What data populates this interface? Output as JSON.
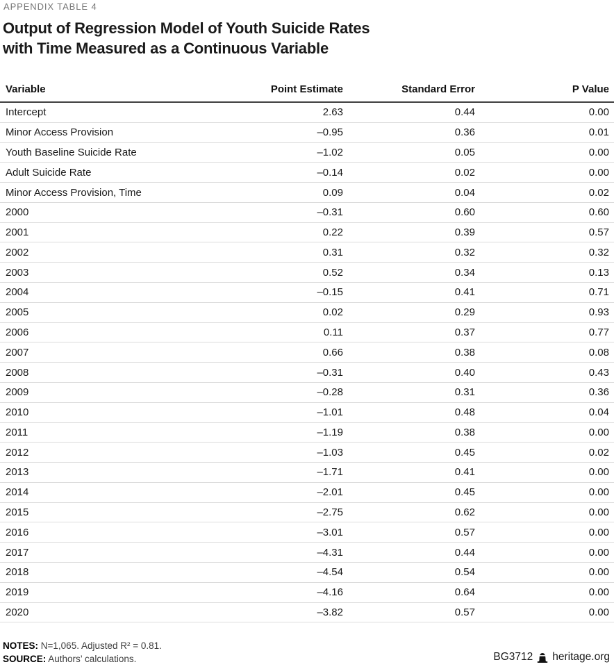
{
  "page": {
    "kicker": "APPENDIX TABLE 4",
    "title_line1": "Output of Regression Model of Youth Suicide Rates",
    "title_line2": "with Time Measured as a Continuous Variable"
  },
  "chart_data": {
    "type": "table",
    "title": "Output of Regression Model of Youth Suicide Rates with Time Measured as a Continuous Variable",
    "columns": [
      "Variable",
      "Point Estimate",
      "Standard Error",
      "P Value"
    ],
    "rows": [
      [
        "Intercept",
        "2.63",
        "0.44",
        "0.00"
      ],
      [
        "Minor Access Provision",
        "–0.95",
        "0.36",
        "0.01"
      ],
      [
        "Youth Baseline Suicide Rate",
        "–1.02",
        "0.05",
        "0.00"
      ],
      [
        "Adult Suicide Rate",
        "–0.14",
        "0.02",
        "0.00"
      ],
      [
        "Minor Access Provision, Time",
        "0.09",
        "0.04",
        "0.02"
      ],
      [
        "2000",
        "–0.31",
        "0.60",
        "0.60"
      ],
      [
        "2001",
        "0.22",
        "0.39",
        "0.57"
      ],
      [
        "2002",
        "0.31",
        "0.32",
        "0.32"
      ],
      [
        "2003",
        "0.52",
        "0.34",
        "0.13"
      ],
      [
        "2004",
        "–0.15",
        "0.41",
        "0.71"
      ],
      [
        "2005",
        "0.02",
        "0.29",
        "0.93"
      ],
      [
        "2006",
        "0.11",
        "0.37",
        "0.77"
      ],
      [
        "2007",
        "0.66",
        "0.38",
        "0.08"
      ],
      [
        "2008",
        "–0.31",
        "0.40",
        "0.43"
      ],
      [
        "2009",
        "–0.28",
        "0.31",
        "0.36"
      ],
      [
        "2010",
        "–1.01",
        "0.48",
        "0.04"
      ],
      [
        "2011",
        "–1.19",
        "0.38",
        "0.00"
      ],
      [
        "2012",
        "–1.03",
        "0.45",
        "0.02"
      ],
      [
        "2013",
        "–1.71",
        "0.41",
        "0.00"
      ],
      [
        "2014",
        "–2.01",
        "0.45",
        "0.00"
      ],
      [
        "2015",
        "–2.75",
        "0.62",
        "0.00"
      ],
      [
        "2016",
        "–3.01",
        "0.57",
        "0.00"
      ],
      [
        "2017",
        "–4.31",
        "0.44",
        "0.00"
      ],
      [
        "2018",
        "–4.54",
        "0.54",
        "0.00"
      ],
      [
        "2019",
        "–4.16",
        "0.64",
        "0.00"
      ],
      [
        "2020",
        "–3.82",
        "0.57",
        "0.00"
      ]
    ],
    "layout": {
      "grid": "horizontal-row-rules",
      "numeric_alignment": "right"
    }
  },
  "footer": {
    "notes_label": "NOTES:",
    "notes_text": "N=1,065. Adjusted R² = 0.81.",
    "source_label": "SOURCE:",
    "source_text": "Authors’ calculations.",
    "doc_id": "BG3712",
    "site": "heritage.org",
    "logo_icon": "heritage-liberty-bell-icon"
  },
  "colors": {
    "kicker": "#767676",
    "title": "#1a1a1a",
    "body_text": "#1a1a1a",
    "header_rule": "#3f3f3f",
    "row_rule": "#dcdcdc"
  }
}
